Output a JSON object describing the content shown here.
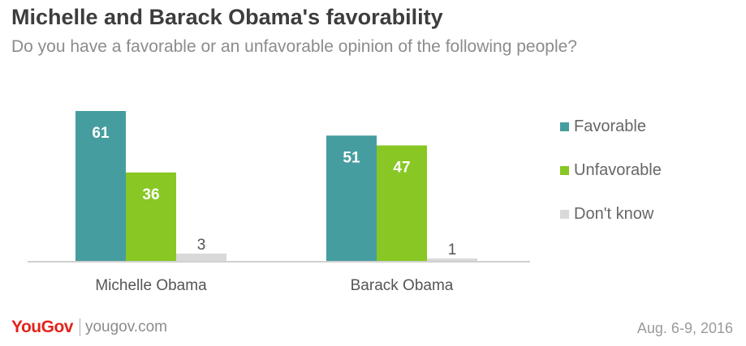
{
  "title": "Michelle and Barack Obama's favorability",
  "subtitle": "Do you have a favorable or an unfavorable opinion of the following people?",
  "footer": {
    "logo": "YouGov",
    "site": "yougov.com",
    "date": "Aug. 6-9, 2016"
  },
  "colors": {
    "favorable": "#469d9f",
    "unfavorable": "#88c724",
    "dont_know": "#d9d9d9"
  },
  "chart_data": {
    "type": "bar",
    "categories": [
      "Michelle Obama",
      "Barack Obama"
    ],
    "series": [
      {
        "name": "Favorable",
        "values": [
          61,
          51
        ]
      },
      {
        "name": "Unfavorable",
        "values": [
          36,
          47
        ]
      },
      {
        "name": "Don't know",
        "values": [
          3,
          1
        ]
      }
    ],
    "ylim": [
      0,
      61
    ],
    "grid": false,
    "legend_position": "right"
  }
}
